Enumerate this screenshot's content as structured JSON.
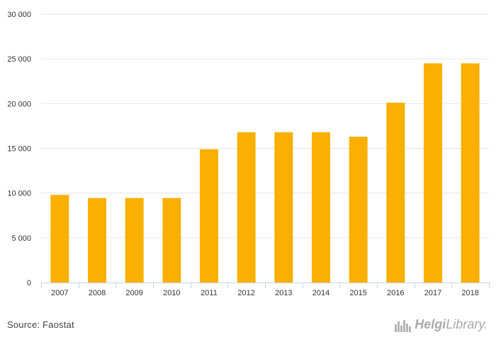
{
  "chart_data": {
    "type": "bar",
    "categories": [
      "2007",
      "2008",
      "2009",
      "2010",
      "2011",
      "2012",
      "2013",
      "2014",
      "2015",
      "2016",
      "2017",
      "2018"
    ],
    "values": [
      9800,
      9450,
      9450,
      9450,
      14900,
      16800,
      16800,
      16800,
      16300,
      20100,
      24500,
      24500
    ],
    "ylim": [
      0,
      30000
    ],
    "yticks": [
      0,
      5000,
      10000,
      15000,
      20000,
      25000,
      30000
    ],
    "ytick_labels": [
      "0",
      "5 000",
      "10 000",
      "15 000",
      "20 000",
      "25 000",
      "30 000"
    ],
    "grid": true,
    "bar_color": "#f9b000"
  },
  "footer": {
    "source": "Source: Faostat",
    "logo_bold": "Helgi",
    "logo_regular": "Library."
  }
}
